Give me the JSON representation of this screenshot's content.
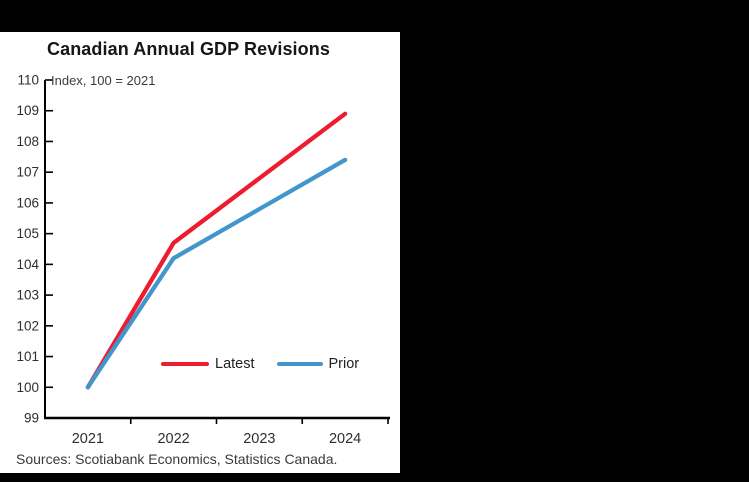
{
  "frame": {
    "background_color": "#000000",
    "panel_background_color": "#ffffff"
  },
  "chart_data": {
    "type": "line",
    "title": "Canadian Annual GDP Revisions",
    "subtitle": "Index, 100 = 2021",
    "source": "Sources: Scotiabank Economics, Statistics Canada.",
    "categories": [
      "2021",
      "2022",
      "2023",
      "2024"
    ],
    "series": [
      {
        "name": "Latest",
        "color": "#ed1c2e",
        "values": [
          100,
          104.7,
          106.8,
          108.9
        ]
      },
      {
        "name": "Prior",
        "color": "#4197cb",
        "values": [
          100,
          104.2,
          105.8,
          107.4
        ]
      }
    ],
    "ylim": [
      99,
      110
    ],
    "y_ticks": [
      99,
      100,
      101,
      102,
      103,
      104,
      105,
      106,
      107,
      108,
      109,
      110
    ],
    "grid": false,
    "legend_position": "inside-bottom",
    "axis_color": "#000000",
    "tick_label_color": "#2e2e2e"
  }
}
